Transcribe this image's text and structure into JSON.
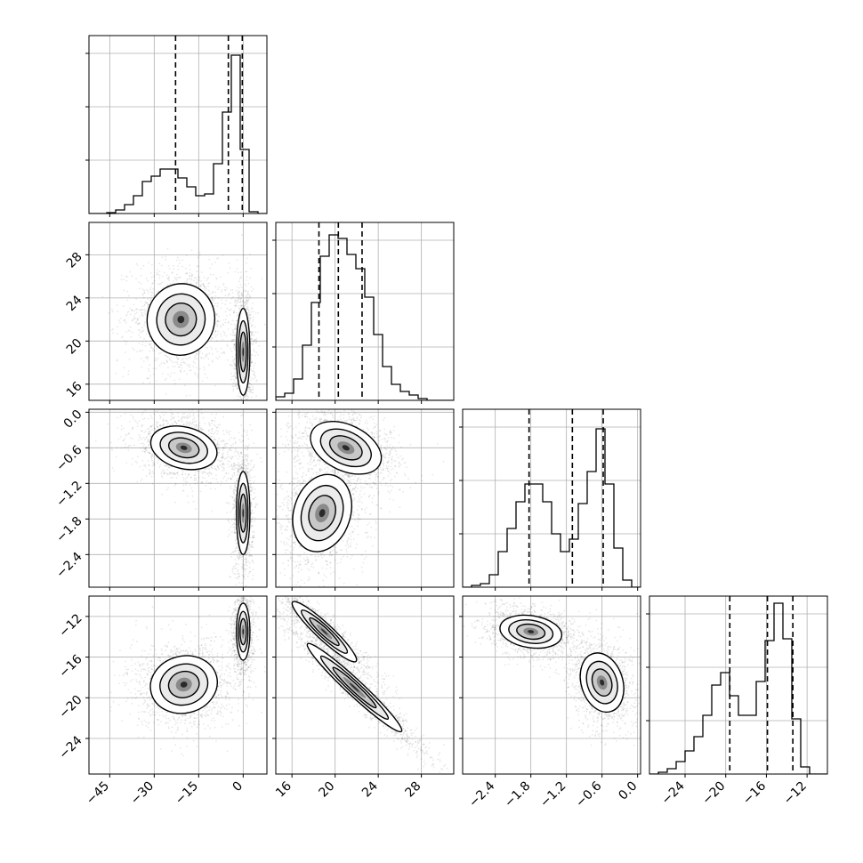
{
  "chart_data": {
    "type": "corner",
    "parameters": [
      {
        "key": "p1",
        "ticks": [
          "−45",
          "−30",
          "−15",
          "0"
        ],
        "tick_values": [
          -45,
          -30,
          -15,
          0
        ],
        "range": [
          -52,
          8
        ]
      },
      {
        "key": "p2",
        "ticks": [
          "16",
          "20",
          "24",
          "28"
        ],
        "tick_values": [
          16,
          20,
          24,
          28
        ],
        "range": [
          14.5,
          31
        ]
      },
      {
        "key": "p3",
        "ticks": [
          "−2.4",
          "−1.8",
          "−1.2",
          "−0.6",
          "0.0"
        ],
        "tick_values": [
          -2.4,
          -1.8,
          -1.2,
          -0.6,
          0.0
        ],
        "range": [
          -2.95,
          0.05
        ]
      },
      {
        "key": "p4",
        "ticks": [
          "−24",
          "−20",
          "−16",
          "−12"
        ],
        "tick_values": [
          -24,
          -20,
          -16,
          -12
        ],
        "range": [
          -27.5,
          -10.0
        ]
      }
    ],
    "histograms": [
      {
        "param": 0,
        "edges_range": [
          -52,
          8
        ],
        "counts": [
          0,
          0,
          0.005,
          0.02,
          0.05,
          0.1,
          0.18,
          0.21,
          0.25,
          0.25,
          0.2,
          0.15,
          0.1,
          0.11,
          0.28,
          0.57,
          0.89,
          0.36,
          0.01,
          0
        ],
        "quantiles": [
          -22.8,
          -5.0,
          -0.3
        ]
      },
      {
        "param": 1,
        "edges_range": [
          14.5,
          31
        ],
        "counts": [
          0.02,
          0.04,
          0.12,
          0.31,
          0.55,
          0.81,
          0.93,
          0.91,
          0.82,
          0.74,
          0.58,
          0.37,
          0.19,
          0.09,
          0.05,
          0.03,
          0.01,
          0,
          0,
          0
        ],
        "quantiles": [
          18.5,
          20.3,
          22.5
        ]
      },
      {
        "param": 2,
        "edges_range": [
          -2.95,
          0.05
        ],
        "counts": [
          0,
          0.01,
          0.02,
          0.07,
          0.2,
          0.33,
          0.48,
          0.58,
          0.58,
          0.48,
          0.3,
          0.2,
          0.27,
          0.47,
          0.65,
          0.89,
          0.58,
          0.22,
          0.04,
          0
        ],
        "quantiles": [
          -1.83,
          -1.1,
          -0.58
        ]
      },
      {
        "param": 3,
        "edges_range": [
          -27.5,
          -10.0
        ],
        "counts": [
          0,
          0.01,
          0.03,
          0.07,
          0.13,
          0.21,
          0.33,
          0.5,
          0.57,
          0.44,
          0.33,
          0.33,
          0.52,
          0.75,
          0.96,
          0.76,
          0.31,
          0.04,
          0,
          0
        ],
        "quantiles": [
          -19.6,
          -15.9,
          -13.4
        ]
      }
    ],
    "blobs": [
      {
        "pair": [
          1,
          0
        ],
        "modes": [
          {
            "cx": -21,
            "cy": 22,
            "sx": 6.5,
            "sy": 1.9,
            "rot": -0.2,
            "weight": 0.55
          },
          {
            "cx": 0,
            "cy": 19,
            "sx": 1.3,
            "sy": 2.3,
            "rot": 0,
            "weight": 0.45
          }
        ]
      },
      {
        "pair": [
          2,
          0
        ],
        "modes": [
          {
            "cx": -20,
            "cy": -0.6,
            "sx": 6.5,
            "sy": 0.2,
            "rot": -0.25,
            "weight": 0.55
          },
          {
            "cx": 0,
            "cy": -1.7,
            "sx": 1.3,
            "sy": 0.4,
            "rot": 0,
            "weight": 0.45
          }
        ]
      },
      {
        "pair": [
          3,
          0
        ],
        "modes": [
          {
            "cx": -20,
            "cy": -18.7,
            "sx": 6.5,
            "sy": 1.6,
            "rot": 0.25,
            "weight": 0.55
          },
          {
            "cx": 0,
            "cy": -13.5,
            "sx": 1.3,
            "sy": 1.6,
            "rot": 0,
            "weight": 0.45
          }
        ]
      },
      {
        "pair": [
          2,
          1
        ],
        "modes": [
          {
            "cx": 21,
            "cy": -0.6,
            "sx": 2.0,
            "sy": 0.22,
            "rot": -0.45,
            "weight": 0.5
          },
          {
            "cx": 18.8,
            "cy": -1.7,
            "sx": 1.5,
            "sy": 0.38,
            "rot": -0.3,
            "weight": 0.5
          }
        ]
      },
      {
        "pair": [
          3,
          1
        ],
        "modes": [
          {
            "cx": 19,
            "cy": -13.5,
            "sx": 2.3,
            "sy": 0.45,
            "rot": -0.75,
            "weight": 0.45
          },
          {
            "cx": 21.8,
            "cy": -19,
            "sx": 3.4,
            "sy": 0.45,
            "rot": -0.75,
            "weight": 0.55
          }
        ]
      },
      {
        "pair": [
          3,
          2
        ],
        "modes": [
          {
            "cx": -1.8,
            "cy": -13.5,
            "sx": 0.3,
            "sy": 0.9,
            "rot": -0.15,
            "weight": 0.5
          },
          {
            "cx": -0.6,
            "cy": -18.5,
            "sx": 0.2,
            "sy": 1.7,
            "rot": 0.3,
            "weight": 0.5
          }
        ]
      }
    ],
    "grid": true,
    "title": "",
    "legend": null
  }
}
